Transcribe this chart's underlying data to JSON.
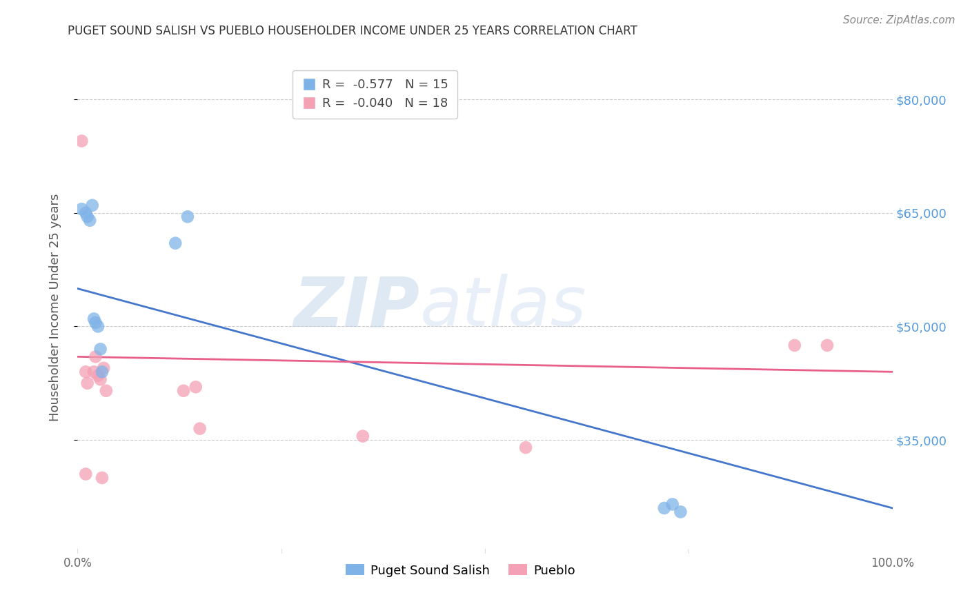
{
  "title": "PUGET SOUND SALISH VS PUEBLO HOUSEHOLDER INCOME UNDER 25 YEARS CORRELATION CHART",
  "source": "Source: ZipAtlas.com",
  "ylabel": "Householder Income Under 25 years",
  "xlim": [
    0.0,
    1.0
  ],
  "ylim": [
    20000,
    85000
  ],
  "yticks": [
    35000,
    50000,
    65000,
    80000
  ],
  "ytick_labels": [
    "$35,000",
    "$50,000",
    "$65,000",
    "$80,000"
  ],
  "xticks": [
    0.0,
    0.25,
    0.5,
    0.75,
    1.0
  ],
  "xtick_labels": [
    "0.0%",
    "",
    "",
    "",
    "100.0%"
  ],
  "blue_scatter_x": [
    0.005,
    0.01,
    0.012,
    0.015,
    0.018,
    0.02,
    0.022,
    0.025,
    0.028,
    0.03,
    0.12,
    0.135,
    0.72,
    0.73,
    0.74
  ],
  "blue_scatter_y": [
    65500,
    65000,
    64500,
    64000,
    66000,
    51000,
    50500,
    50000,
    47000,
    44000,
    61000,
    64500,
    26000,
    26500,
    25500
  ],
  "pink_scatter_x": [
    0.005,
    0.01,
    0.012,
    0.02,
    0.022,
    0.025,
    0.028,
    0.03,
    0.032,
    0.035,
    0.13,
    0.145,
    0.15,
    0.35,
    0.55,
    0.88,
    0.92,
    0.01
  ],
  "pink_scatter_y": [
    74500,
    44000,
    42500,
    44000,
    46000,
    43500,
    43000,
    30000,
    44500,
    41500,
    41500,
    42000,
    36500,
    35500,
    34000,
    47500,
    47500,
    30500
  ],
  "blue_line_x0": 0.0,
  "blue_line_y0": 55000,
  "blue_line_x1": 1.0,
  "blue_line_y1": 26000,
  "pink_line_x0": 0.0,
  "pink_line_y0": 46000,
  "pink_line_x1": 1.0,
  "pink_line_y1": 44000,
  "blue_R": "-0.577",
  "blue_N": "15",
  "pink_R": "-0.040",
  "pink_N": "18",
  "blue_color": "#7fb3e8",
  "pink_color": "#f4a0b5",
  "blue_line_color": "#4477cc",
  "pink_line_color": "#e8608a",
  "legend_label_blue": "Puget Sound Salish",
  "legend_label_pink": "Pueblo",
  "watermark_zip": "ZIP",
  "watermark_atlas": "atlas",
  "background_color": "#ffffff",
  "grid_color": "#cccccc",
  "title_color": "#333333",
  "axis_label_color": "#555555",
  "right_axis_label_color": "#5599dd",
  "source_color": "#888888"
}
